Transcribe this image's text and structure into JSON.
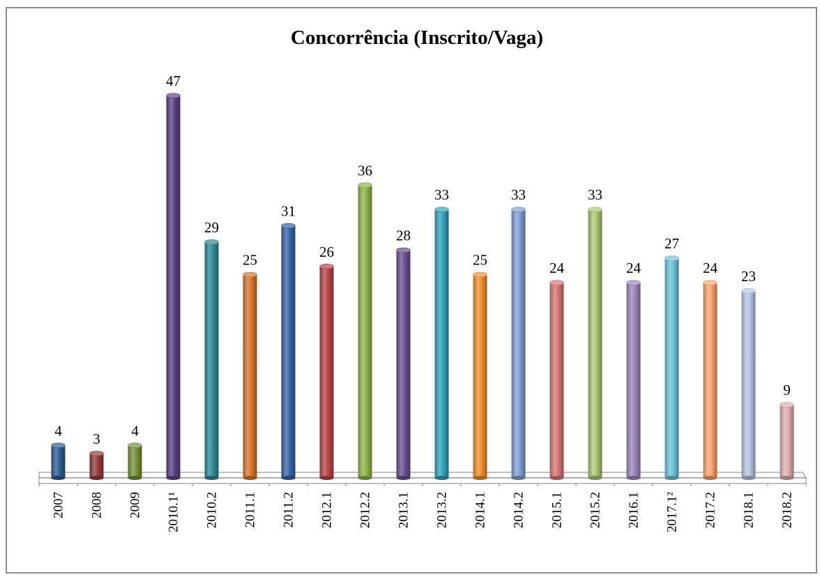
{
  "chart_data": {
    "type": "bar",
    "title": "Concorrência (Inscrito/Vaga)",
    "xlabel": "",
    "ylabel": "",
    "ylim": [
      0,
      47
    ],
    "grid": false,
    "legend": "none",
    "categories": [
      "2007",
      "2008",
      "2009",
      "2010.1¹",
      "2010.2",
      "2011.1",
      "2011.2",
      "2012.1",
      "2012.2",
      "2013.1",
      "2013.2",
      "2014.1",
      "2014.2",
      "2015.1",
      "2015.2",
      "2016.1",
      "2017.1²",
      "2017.2",
      "2018.1",
      "2018.2"
    ],
    "values": [
      4,
      3,
      4,
      47,
      29,
      25,
      31,
      26,
      36,
      28,
      33,
      25,
      33,
      24,
      33,
      24,
      27,
      24,
      23,
      9
    ],
    "labels": [
      "4",
      "3",
      "4",
      "47",
      "29",
      "25",
      "31",
      "26",
      "36",
      "28",
      "33",
      "25",
      "33",
      "24",
      "33",
      "24",
      "27",
      "24",
      "23",
      "9"
    ],
    "colors": [
      "#2e5d94",
      "#963c3a",
      "#76923c",
      "#5c4282",
      "#2f8a98",
      "#d9782c",
      "#3566a6",
      "#b94545",
      "#8fb64a",
      "#6a4f92",
      "#32a3bb",
      "#f0902e",
      "#7f9fd4",
      "#d77676",
      "#a9c872",
      "#9b87bd",
      "#6ec4da",
      "#f9a66a",
      "#b7c6e2",
      "#deb0b0"
    ]
  }
}
